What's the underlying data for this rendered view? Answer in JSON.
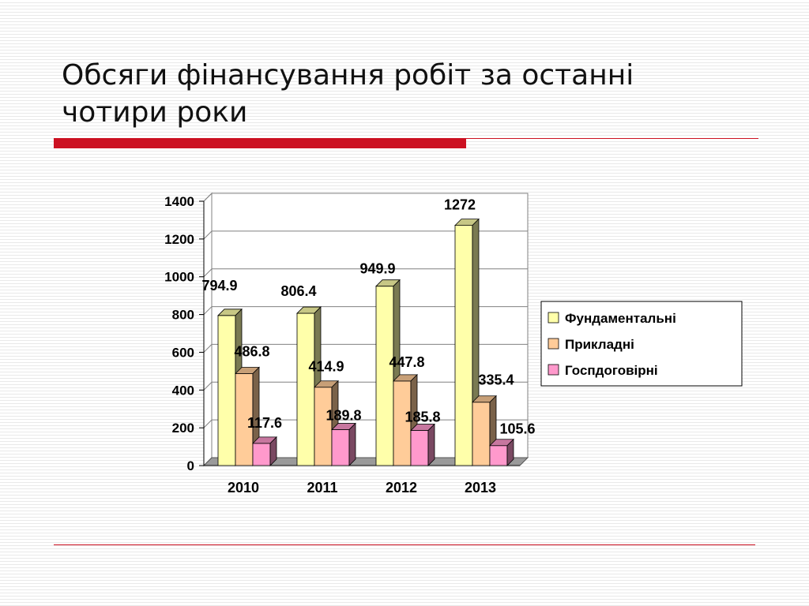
{
  "slide": {
    "title": "Обсяги фінансування робіт за останні чотири роки",
    "accent_color": "#cc1122",
    "rule_color": "#cc1122"
  },
  "chart_data": {
    "type": "bar",
    "title": "",
    "xlabel": "",
    "ylabel": "",
    "categories": [
      "2010",
      "2011",
      "2012",
      "2013"
    ],
    "ylim": [
      0,
      1400
    ],
    "yticks": [
      0,
      200,
      400,
      600,
      800,
      1000,
      1200,
      1400
    ],
    "grid": true,
    "legend_position": "right",
    "series": [
      {
        "name": "Фундаментальні",
        "values": [
          794.9,
          806.4,
          949.9,
          1272
        ],
        "labels": [
          "794.9",
          "806.4",
          "949.9",
          "1272"
        ],
        "color": "#ffffaa"
      },
      {
        "name": "Прикладні",
        "values": [
          486.8,
          414.9,
          447.8,
          335.4
        ],
        "labels": [
          "486.8",
          "414.9",
          "447.8",
          "335.4"
        ],
        "color": "#ffcc99"
      },
      {
        "name": "Госпдоговірні",
        "values": [
          117.6,
          189.8,
          185.8,
          105.6
        ],
        "labels": [
          "117.6",
          "189.8",
          "185.8",
          "105.6"
        ],
        "color": "#ff99cc"
      }
    ]
  }
}
